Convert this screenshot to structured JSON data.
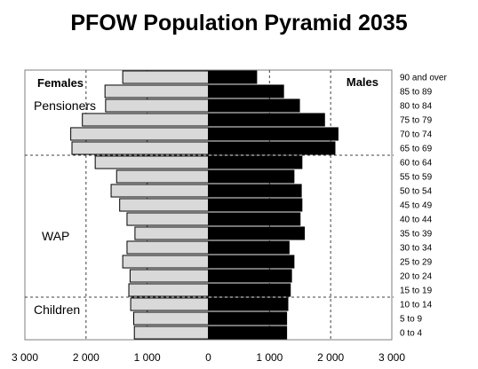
{
  "chart_data": {
    "type": "bar",
    "orientation": "horizontal",
    "layout": "population-pyramid",
    "title": "PFOW Population Pyramid 2035",
    "categories": [
      "0 to 4",
      "5 to 9",
      "10 to 14",
      "15 to 19",
      "20 to 24",
      "25 to 29",
      "30 to 34",
      "35 to 39",
      "40 to 44",
      "45 to 49",
      "50 to 54",
      "55 to 59",
      "60 to 64",
      "65 to 69",
      "70 to 74",
      "75 to 79",
      "80 to 84",
      "85 to 89",
      "90 and over"
    ],
    "series": [
      {
        "name": "Females",
        "color": "#d9d9d9",
        "values": [
          1210,
          1220,
          1270,
          1300,
          1280,
          1400,
          1330,
          1200,
          1330,
          1450,
          1590,
          1500,
          1850,
          2230,
          2250,
          2060,
          1680,
          1690,
          1400
        ]
      },
      {
        "name": "Males",
        "color": "#000000",
        "values": [
          1280,
          1280,
          1300,
          1340,
          1360,
          1400,
          1320,
          1570,
          1500,
          1530,
          1520,
          1400,
          1530,
          2070,
          2120,
          1900,
          1490,
          1230,
          790
        ]
      }
    ],
    "xlim": [
      -3000,
      3000
    ],
    "xticks": [
      -3000,
      -2000,
      -1000,
      0,
      1000,
      2000,
      3000
    ],
    "xtick_labels": [
      "3 000",
      "2 000",
      "1 000",
      "0",
      "1 000",
      "2 000",
      "3 000"
    ],
    "grid": "vertical dashed",
    "group_labels": [
      {
        "text": "Pensioners",
        "from": "65 to 69",
        "to": "90 and over"
      },
      {
        "text": "WAP",
        "from": "15 to 19",
        "to": "60 to 64"
      },
      {
        "text": "Children",
        "from": "0 to 4",
        "to": "10 to 14"
      }
    ],
    "group_dividers_after": [
      "60 to 64",
      "10 to 14"
    ],
    "legend": [
      "Females",
      "Males"
    ]
  }
}
